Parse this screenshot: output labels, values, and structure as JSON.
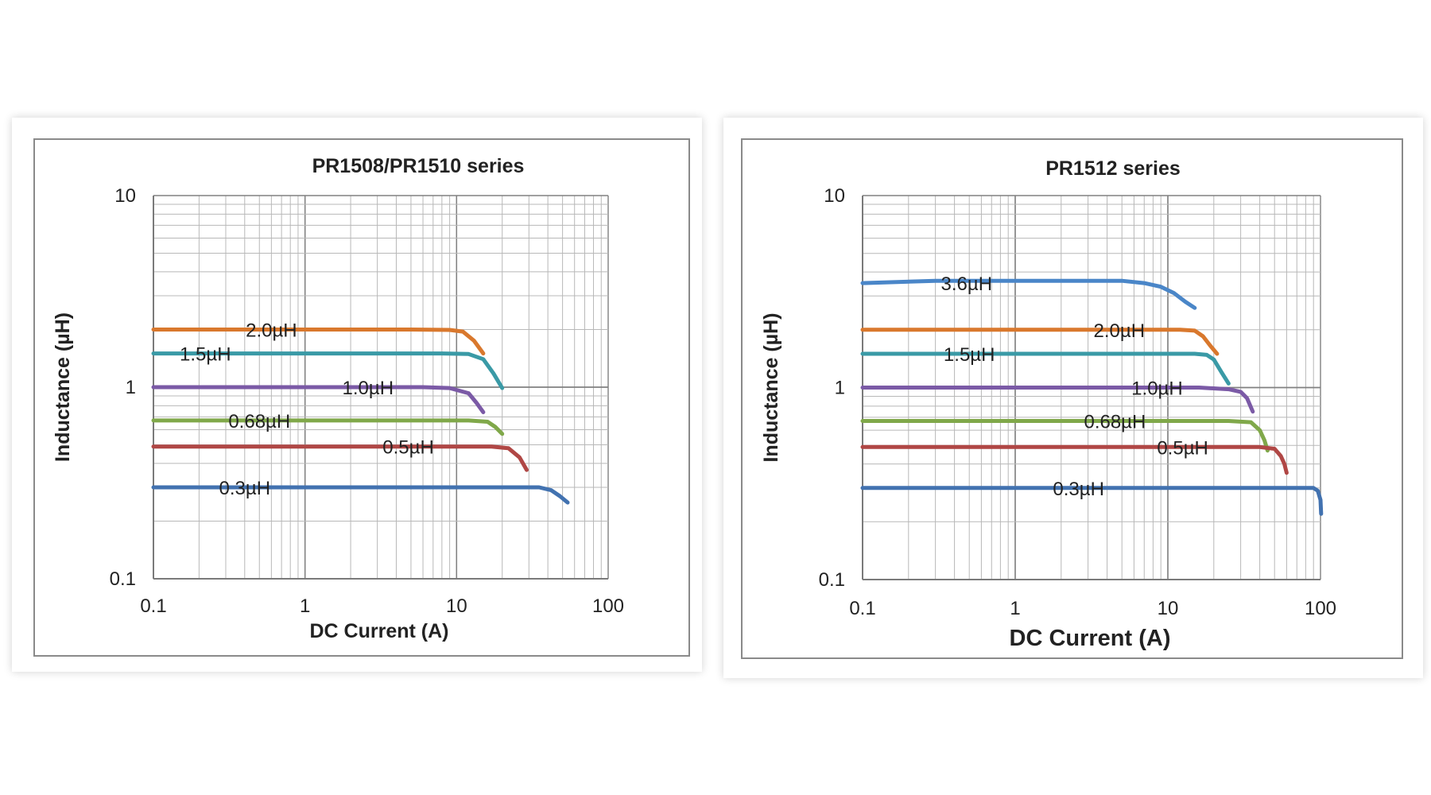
{
  "chart_data": [
    {
      "type": "line",
      "title": "PR1508/PR1510 series",
      "xlabel": "DC Current (A)",
      "ylabel": "Inductance (µH)",
      "x_scale": "log",
      "y_scale": "log",
      "xlim": [
        0.1,
        100
      ],
      "ylim": [
        0.1,
        10
      ],
      "x_ticks": [
        "0.1",
        "1",
        "10",
        "100"
      ],
      "y_ticks": [
        "0.1",
        "1",
        "10"
      ],
      "grid": true,
      "series": [
        {
          "name": "2.0µH",
          "color": "#d9782d",
          "label_x": 0.6,
          "points": [
            [
              0.1,
              2.0
            ],
            [
              5,
              2.0
            ],
            [
              9,
              1.99
            ],
            [
              11,
              1.95
            ],
            [
              13,
              1.75
            ],
            [
              15,
              1.5
            ]
          ]
        },
        {
          "name": "1.5µH",
          "color": "#3a9aa6",
          "label_x": 0.22,
          "points": [
            [
              0.1,
              1.5
            ],
            [
              8,
              1.5
            ],
            [
              12,
              1.49
            ],
            [
              15,
              1.4
            ],
            [
              17.5,
              1.18
            ],
            [
              20,
              0.99
            ]
          ]
        },
        {
          "name": "1.0µH",
          "color": "#7b5aa6",
          "label_x": 2.6,
          "points": [
            [
              0.1,
              1.0
            ],
            [
              6,
              1.0
            ],
            [
              9,
              0.99
            ],
            [
              12,
              0.93
            ],
            [
              13.5,
              0.83
            ],
            [
              15,
              0.74
            ]
          ]
        },
        {
          "name": "0.68µH",
          "color": "#80a84a",
          "label_x": 0.5,
          "points": [
            [
              0.1,
              0.67
            ],
            [
              12,
              0.67
            ],
            [
              16,
              0.66
            ],
            [
              18,
              0.62
            ],
            [
              20,
              0.57
            ]
          ]
        },
        {
          "name": "0.5µH",
          "color": "#b04745",
          "label_x": 4.8,
          "points": [
            [
              0.1,
              0.49
            ],
            [
              17,
              0.49
            ],
            [
              22,
              0.48
            ],
            [
              26,
              0.43
            ],
            [
              29,
              0.37
            ]
          ]
        },
        {
          "name": "0.3µH",
          "color": "#4272b0",
          "label_x": 0.4,
          "points": [
            [
              0.1,
              0.3
            ],
            [
              35,
              0.3
            ],
            [
              42,
              0.29
            ],
            [
              48,
              0.27
            ],
            [
              54,
              0.25
            ]
          ]
        }
      ]
    },
    {
      "type": "line",
      "title": "PR1512 series",
      "xlabel": "DC Current (A)",
      "ylabel": "Inductance (µH)",
      "x_scale": "log",
      "y_scale": "log",
      "xlim": [
        0.1,
        100
      ],
      "ylim": [
        0.1,
        10
      ],
      "x_ticks": [
        "0.1",
        "1",
        "10",
        "100"
      ],
      "y_ticks": [
        "0.1",
        "1",
        "10"
      ],
      "grid": true,
      "series": [
        {
          "name": "3.6µH",
          "color": "#4a86c8",
          "label_x": 0.48,
          "points": [
            [
              0.1,
              3.5
            ],
            [
              0.3,
              3.6
            ],
            [
              5,
              3.6
            ],
            [
              7,
              3.5
            ],
            [
              9,
              3.35
            ],
            [
              11,
              3.1
            ],
            [
              13,
              2.8
            ],
            [
              15,
              2.6
            ]
          ]
        },
        {
          "name": "2.0µH",
          "color": "#d9782d",
          "label_x": 4.8,
          "points": [
            [
              0.1,
              2.0
            ],
            [
              12,
              2.0
            ],
            [
              15,
              1.98
            ],
            [
              17,
              1.85
            ],
            [
              19,
              1.65
            ],
            [
              21,
              1.5
            ]
          ]
        },
        {
          "name": "1.5µH",
          "color": "#3a9aa6",
          "label_x": 0.5,
          "points": [
            [
              0.1,
              1.5
            ],
            [
              15,
              1.5
            ],
            [
              18,
              1.48
            ],
            [
              20,
              1.4
            ],
            [
              22.5,
              1.2
            ],
            [
              25,
              1.05
            ]
          ]
        },
        {
          "name": "1.0µH",
          "color": "#7b5aa6",
          "label_x": 8.5,
          "points": [
            [
              0.1,
              1.0
            ],
            [
              16,
              1.0
            ],
            [
              25,
              0.98
            ],
            [
              30,
              0.95
            ],
            [
              33,
              0.88
            ],
            [
              36,
              0.75
            ]
          ]
        },
        {
          "name": "0.68µH",
          "color": "#80a84a",
          "label_x": 4.5,
          "points": [
            [
              0.1,
              0.67
            ],
            [
              25,
              0.67
            ],
            [
              35,
              0.66
            ],
            [
              40,
              0.6
            ],
            [
              43,
              0.53
            ],
            [
              45,
              0.47
            ]
          ]
        },
        {
          "name": "0.5µH",
          "color": "#b04745",
          "label_x": 12.5,
          "points": [
            [
              0.1,
              0.49
            ],
            [
              40,
              0.49
            ],
            [
              50,
              0.48
            ],
            [
              55,
              0.44
            ],
            [
              58,
              0.4
            ],
            [
              60,
              0.36
            ]
          ]
        },
        {
          "name": "0.3µH",
          "color": "#4272b0",
          "label_x": 2.6,
          "points": [
            [
              0.1,
              0.3
            ],
            [
              90,
              0.3
            ],
            [
              96,
              0.29
            ],
            [
              100,
              0.26
            ],
            [
              101,
              0.22
            ]
          ]
        }
      ]
    }
  ]
}
